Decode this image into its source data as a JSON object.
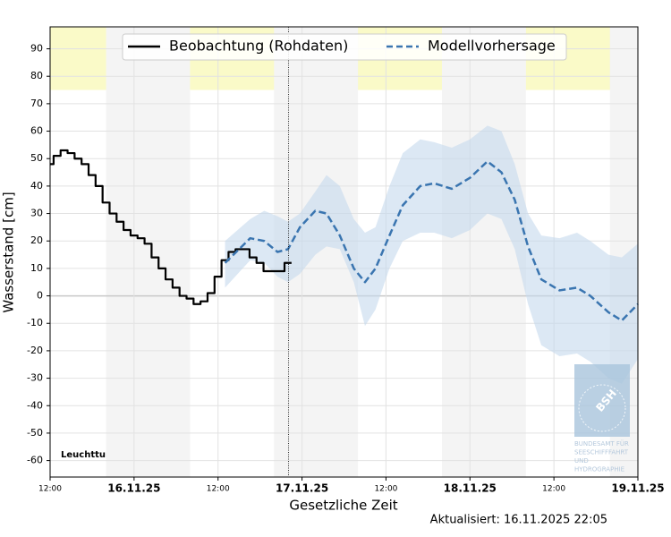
{
  "chart_data": {
    "type": "line",
    "title": "Leuchtturm Kiel",
    "xlabel": "Gesetzliche Zeit",
    "ylabel": "Wasserstand [cm]",
    "updated": "Aktualisiert: 16.11.2025 22:05",
    "logo": {
      "mark": "BSH",
      "lines": [
        "BUNDESAMT FÜR",
        "SEESCHIFFFAHRT",
        "UND",
        "HYDROGRAPHIE"
      ]
    },
    "xlim": [
      0,
      84
    ],
    "ylim": [
      -66,
      98
    ],
    "xticks": [
      {
        "value": 0,
        "label": "12:00"
      },
      {
        "value": 12,
        "label": "16.11.25"
      },
      {
        "value": 24,
        "label": "12:00"
      },
      {
        "value": 36,
        "label": "17.11.25"
      },
      {
        "value": 48,
        "label": "12:00"
      },
      {
        "value": 60,
        "label": "18.11.25"
      },
      {
        "value": 72,
        "label": "12:00"
      },
      {
        "value": 84,
        "label": "19.11.25"
      }
    ],
    "yticks": [
      -60,
      -50,
      -40,
      -30,
      -20,
      -10,
      0,
      10,
      20,
      30,
      40,
      50,
      60,
      70,
      80,
      90
    ],
    "grid": true,
    "legend": "top",
    "night_shading": [
      [
        8,
        20
      ],
      [
        32,
        44
      ],
      [
        56,
        68
      ],
      [
        80,
        84
      ]
    ],
    "warning_band": [
      75,
      98
    ],
    "now": 34.08,
    "series": [
      {
        "name": "Beobachtung (Rohdaten)",
        "color": "#000000",
        "style": "step",
        "x": [
          0,
          1,
          2,
          3,
          4,
          5,
          6,
          7,
          8,
          9,
          10,
          11,
          12,
          13,
          14,
          15,
          16,
          17,
          18,
          19,
          20,
          21,
          22,
          23,
          24,
          25,
          26,
          27,
          28,
          29,
          30,
          31,
          32,
          33,
          34
        ],
        "values": [
          48,
          51,
          53,
          52,
          50,
          48,
          44,
          40,
          34,
          30,
          27,
          24,
          22,
          21,
          19,
          14,
          10,
          6,
          3,
          0,
          -1,
          -3,
          -2,
          1,
          7,
          13,
          16,
          17,
          17,
          14,
          12,
          9,
          9,
          9,
          12
        ]
      },
      {
        "name": "Modellvorhersage",
        "color": "#3a75b0",
        "style": "dashed",
        "band_color": "#c5d9ec",
        "x": [
          25,
          28.6,
          30.6,
          32.5,
          34,
          35.7,
          37.9,
          39.5,
          41.4,
          43.4,
          45,
          46.5,
          48.5,
          50.4,
          52.9,
          54.9,
          57.4,
          60,
          62.5,
          64.5,
          66.4,
          68.3,
          70.2,
          72.8,
          75.3,
          77.2,
          79.8,
          81.7,
          84
        ],
        "values": [
          12,
          21,
          20,
          16,
          17,
          25,
          31,
          30,
          22,
          10,
          5,
          10,
          22,
          33,
          40,
          41,
          39,
          43,
          49,
          45,
          35,
          18,
          6,
          2,
          3,
          0,
          -6,
          -9,
          -3
        ],
        "upper": [
          20,
          28,
          31,
          29,
          27,
          30,
          38,
          44,
          40,
          28,
          23,
          25,
          40,
          52,
          57,
          56,
          54,
          57,
          62,
          60,
          48,
          30,
          22,
          21,
          23,
          20,
          15,
          14,
          19
        ],
        "lower": [
          3,
          13,
          12,
          7,
          5,
          8,
          15,
          18,
          17,
          5,
          -11,
          -5,
          10,
          20,
          23,
          23,
          21,
          24,
          30,
          28,
          17,
          -3,
          -18,
          -22,
          -21,
          -24,
          -30,
          -32,
          -23
        ]
      }
    ]
  }
}
